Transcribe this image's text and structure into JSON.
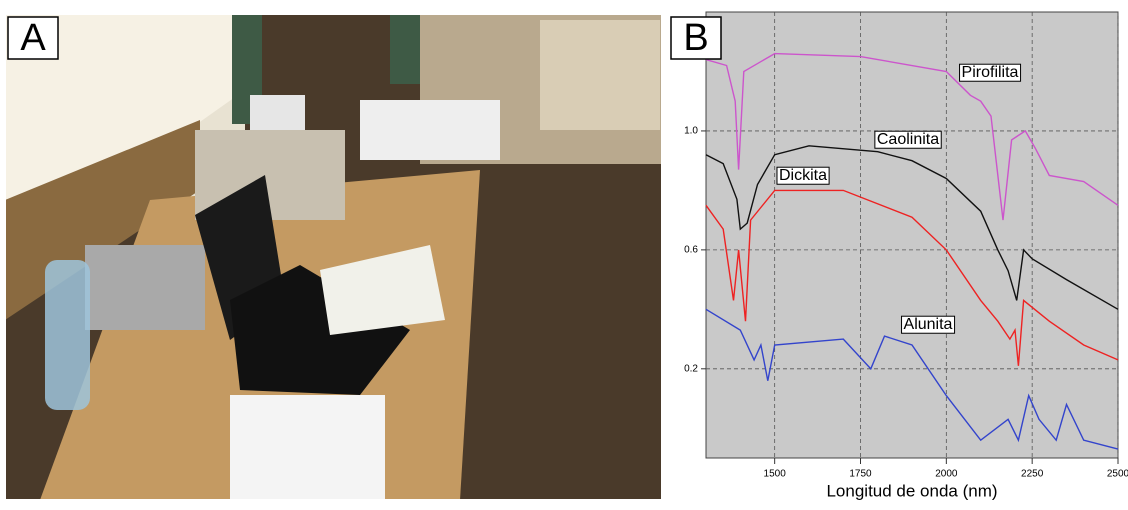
{
  "panel_labels": [
    "A",
    "B"
  ],
  "chart_data": {
    "type": "line",
    "x_label": "Longitud de onda (nm)",
    "xlim": [
      1300,
      2500
    ],
    "xticks": [
      1500,
      1750,
      2000,
      2250,
      2500
    ],
    "ylim": [
      -0.1,
      1.4
    ],
    "yticks": [
      0.2,
      0.6,
      {
        "value": 1,
        "label": "1.0"
      }
    ],
    "grid": true,
    "series": [
      {
        "name": "Pirofilita",
        "color": "#cc55cc",
        "x": [
          1300,
          1360,
          1385,
          1395,
          1410,
          1500,
          1750,
          2000,
          2070,
          2100,
          2130,
          2165,
          2190,
          2230,
          2260,
          2300,
          2400,
          2500
        ],
        "values": [
          1.24,
          1.22,
          1.1,
          0.87,
          1.2,
          1.26,
          1.25,
          1.2,
          1.12,
          1.1,
          1.05,
          0.7,
          0.97,
          1.0,
          0.94,
          0.85,
          0.83,
          0.75
        ]
      },
      {
        "name": "Caolinita",
        "color": "#111111",
        "x": [
          1300,
          1350,
          1390,
          1400,
          1420,
          1450,
          1500,
          1600,
          1800,
          1900,
          2000,
          2100,
          2150,
          2180,
          2205,
          2225,
          2250,
          2350,
          2500
        ],
        "values": [
          0.92,
          0.89,
          0.77,
          0.67,
          0.69,
          0.82,
          0.92,
          0.95,
          0.93,
          0.9,
          0.84,
          0.73,
          0.6,
          0.53,
          0.43,
          0.6,
          0.57,
          0.5,
          0.4
        ]
      },
      {
        "name": "Dickita",
        "color": "#ee2222",
        "x": [
          1300,
          1350,
          1380,
          1395,
          1415,
          1430,
          1500,
          1700,
          1900,
          2000,
          2100,
          2150,
          2185,
          2200,
          2210,
          2225,
          2300,
          2400,
          2500
        ],
        "values": [
          0.75,
          0.67,
          0.43,
          0.6,
          0.36,
          0.7,
          0.8,
          0.8,
          0.71,
          0.6,
          0.43,
          0.36,
          0.3,
          0.33,
          0.21,
          0.43,
          0.36,
          0.28,
          0.23
        ]
      },
      {
        "name": "Alunita",
        "color": "#3344cc",
        "x": [
          1300,
          1400,
          1440,
          1460,
          1480,
          1500,
          1700,
          1780,
          1820,
          1900,
          2000,
          2100,
          2180,
          2210,
          2240,
          2270,
          2320,
          2350,
          2400,
          2500
        ],
        "values": [
          0.4,
          0.33,
          0.23,
          0.28,
          0.16,
          0.28,
          0.3,
          0.2,
          0.31,
          0.28,
          0.11,
          -0.04,
          0.03,
          -0.04,
          0.11,
          0.03,
          -0.04,
          0.08,
          -0.04,
          -0.07
        ]
      }
    ]
  }
}
